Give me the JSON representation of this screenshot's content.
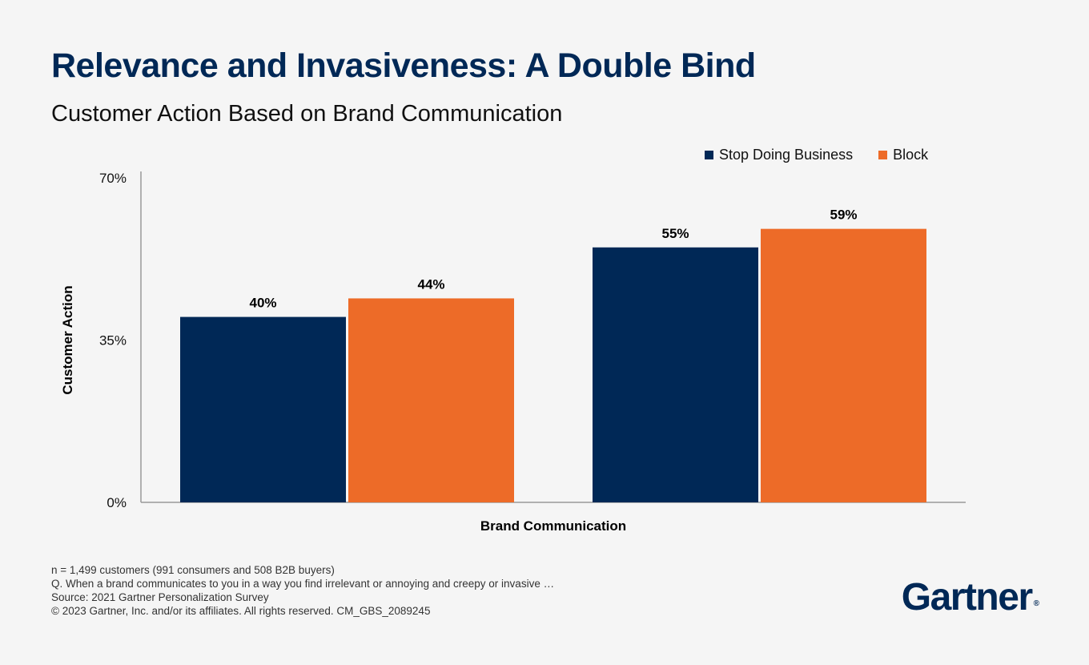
{
  "title": "Relevance and Invasiveness: A Double Bind",
  "subtitle": "Customer Action Based on Brand Communication",
  "colors": {
    "navy": "#002856",
    "orange": "#ed6b28",
    "axis": "#999999"
  },
  "chart_data": {
    "type": "bar",
    "title": "Relevance and Invasiveness: A Double Bind",
    "subtitle": "Customer Action Based on Brand Communication",
    "xlabel": "Brand Communication",
    "ylabel": "Customer Action",
    "ylim": [
      0,
      70
    ],
    "yticks": [
      0,
      35,
      70
    ],
    "ytick_labels": [
      "0%",
      "35%",
      "70%"
    ],
    "legend_placement": "top-right",
    "grid": false,
    "categories": [
      "",
      ""
    ],
    "series": [
      {
        "name": "Stop Doing Business",
        "values": [
          40,
          55
        ],
        "labels": [
          "40%",
          "55%"
        ],
        "color": "#002856"
      },
      {
        "name": "Block",
        "values": [
          44,
          59
        ],
        "labels": [
          "44%",
          "59%"
        ],
        "color": "#ed6b28"
      }
    ]
  },
  "footer": {
    "line1": "n = 1,499 customers (991 consumers and 508 B2B buyers)",
    "line2": "Q. When a brand communicates to you in a way you find irrelevant or annoying and creepy or invasive …",
    "line3": "Source: 2021 Gartner Personalization Survey",
    "line4": "© 2023 Gartner, Inc. and/or its affiliates. All rights reserved. CM_GBS_2089245"
  },
  "brand": {
    "name": "Gartner",
    "mark": "®"
  }
}
